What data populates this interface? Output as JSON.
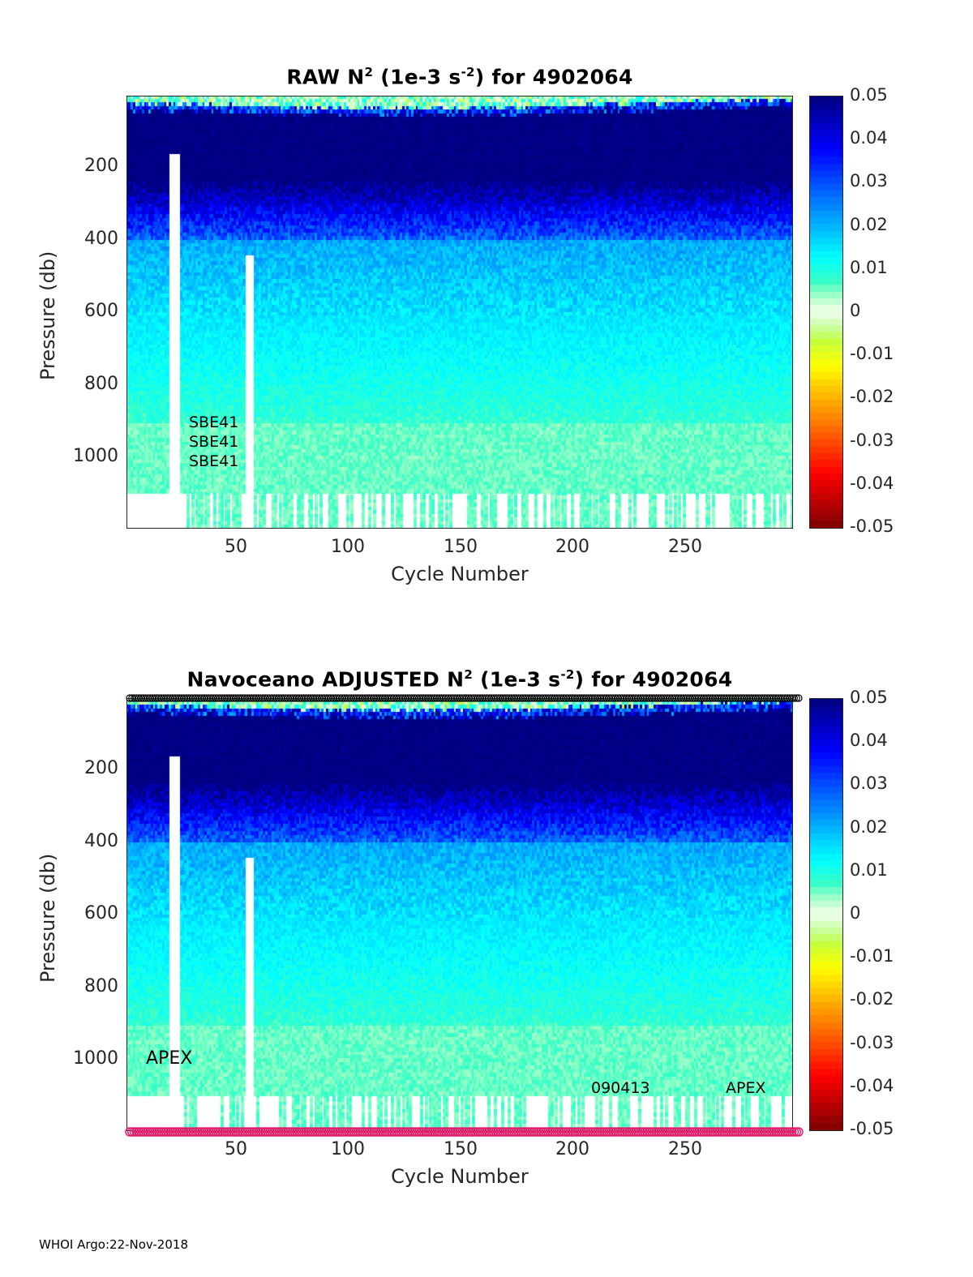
{
  "chart_data": [
    {
      "type": "heatmap",
      "title": {
        "prefix": "RAW N",
        "sup1": "2",
        "mid": " (1e-3 s",
        "sup2": "-2",
        "suffix": ") for 4902064"
      },
      "xlabel": "Cycle Number",
      "ylabel": "Pressure (db)",
      "xlim": [
        0,
        297
      ],
      "ylim": [
        1190,
        0
      ],
      "xticks": [
        "50",
        "100",
        "150",
        "200",
        "250"
      ],
      "yticks": [
        "200",
        "400",
        "600",
        "800",
        "1000"
      ],
      "colorbar": {
        "range": [
          -0.05,
          0.05
        ],
        "ticks": [
          "0.05",
          "0.04",
          "0.03",
          "0.02",
          "0.01",
          "0",
          "-0.01",
          "-0.02",
          "-0.03",
          "-0.04",
          "-0.05"
        ]
      },
      "annotations": [
        "SBE41",
        "SBE41",
        "SBE41"
      ],
      "value_profile": {
        "surface_mixed": 0.0,
        "pycnocline": 0.05,
        "p300": 0.03,
        "p500": 0.015,
        "p800": 0.008,
        "p1100": 0.004
      },
      "gaps_cycles": [
        [
          20,
          24
        ],
        [
          54,
          57
        ]
      ],
      "max_depth_db": 1090
    },
    {
      "type": "heatmap",
      "title": {
        "prefix": "Navoceano  ADJUSTED N",
        "sup1": "2",
        "mid": " (1e-3 s",
        "sup2": "-2",
        "suffix": ") for 4902064"
      },
      "xlabel": "Cycle Number",
      "ylabel": "Pressure (db)",
      "xlim": [
        0,
        297
      ],
      "ylim": [
        1190,
        0
      ],
      "xticks": [
        "50",
        "100",
        "150",
        "200",
        "250"
      ],
      "yticks": [
        "200",
        "400",
        "600",
        "800",
        "1000"
      ],
      "colorbar": {
        "range": [
          -0.05,
          0.05
        ],
        "ticks": [
          "0.05",
          "0.04",
          "0.03",
          "0.02",
          "0.01",
          "0",
          "-0.01",
          "-0.02",
          "-0.03",
          "-0.04",
          "-0.05"
        ]
      },
      "annotations": [
        "APEX",
        "090413",
        "APEX"
      ],
      "value_profile": {
        "surface_mixed": 0.0,
        "pycnocline": 0.05,
        "p300": 0.03,
        "p500": 0.015,
        "p800": 0.008,
        "p1100": 0.004
      },
      "gaps_cycles": [
        [
          20,
          24
        ],
        [
          54,
          57
        ]
      ],
      "max_depth_db": 1090
    }
  ],
  "footer": "WHOI Argo:22-Nov-2018",
  "colors": {
    "frame": "#262626",
    "top_marker": "#000000",
    "bottom_marker": "#e0206e"
  }
}
